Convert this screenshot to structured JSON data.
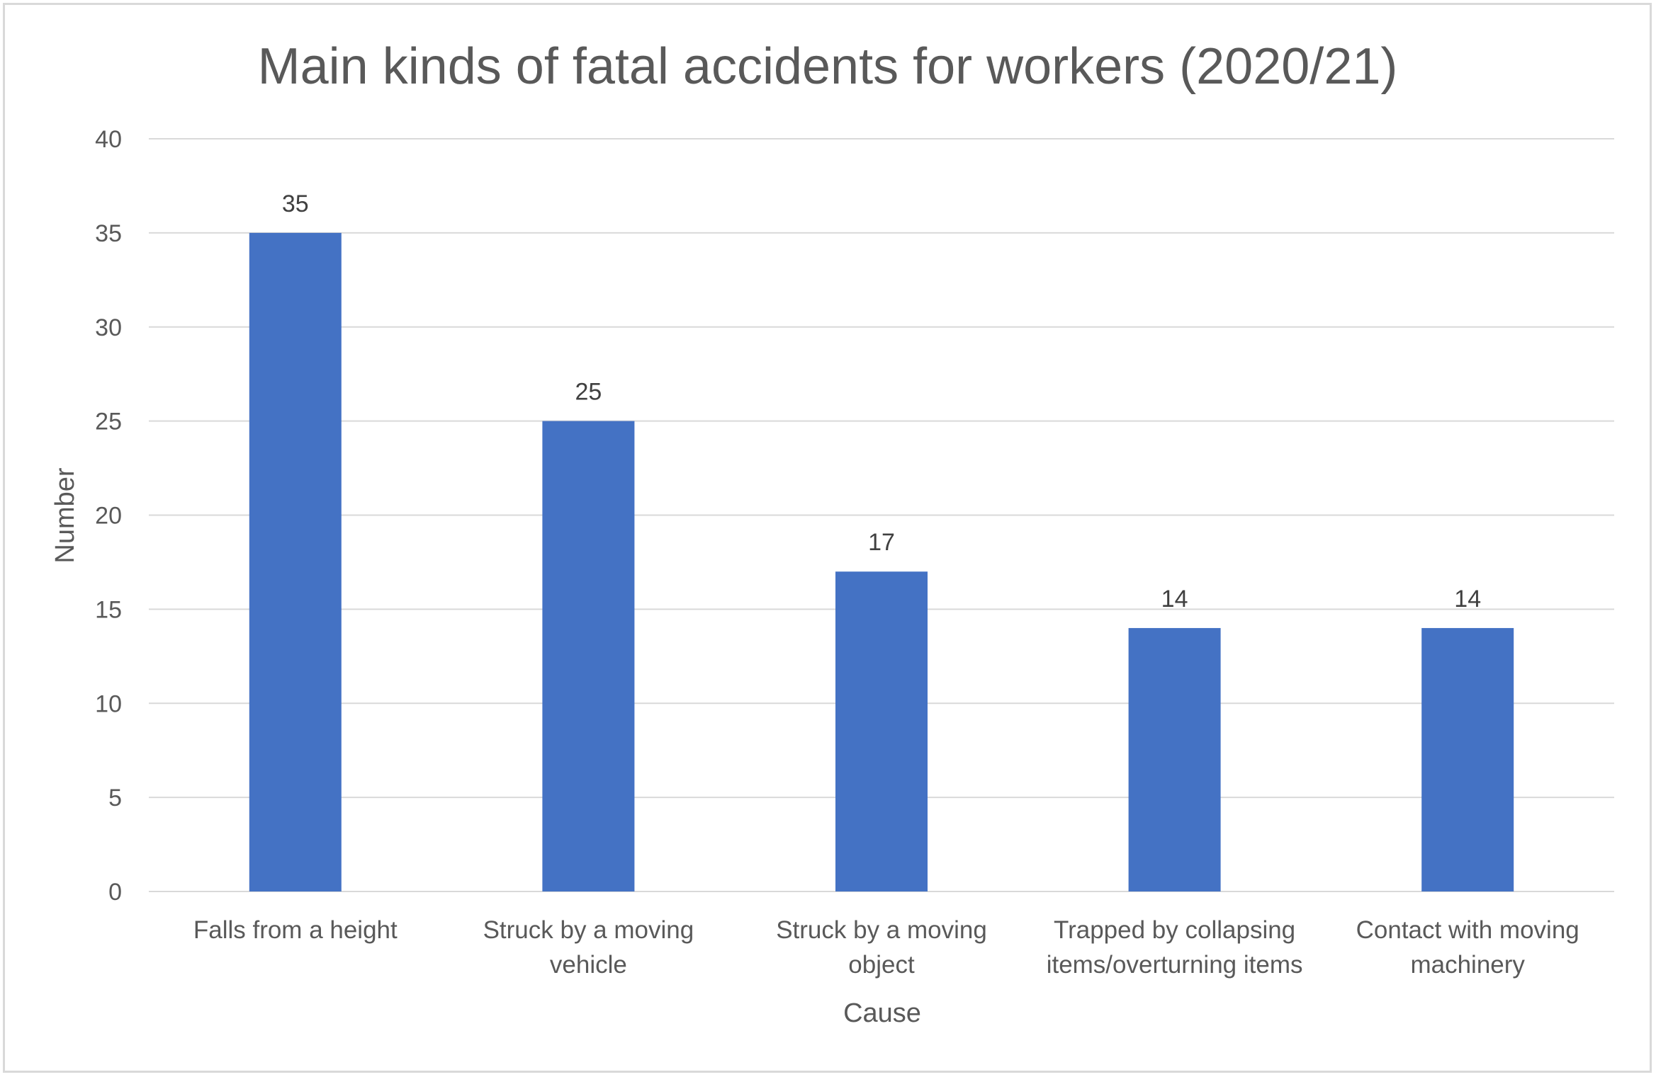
{
  "chart_data": {
    "type": "bar",
    "title": "Main kinds of fatal accidents for workers (2020/21)",
    "xlabel": "Cause",
    "ylabel": "Number",
    "categories": [
      [
        "Falls from a height"
      ],
      [
        "Struck by a moving",
        "vehicle"
      ],
      [
        "Struck by a moving",
        "object"
      ],
      [
        "Trapped by collapsing",
        "items/overturning items"
      ],
      [
        "Contact with moving",
        "machinery"
      ]
    ],
    "values": [
      35,
      25,
      17,
      14,
      14
    ],
    "ylim": [
      0,
      40
    ],
    "yticks": [
      0,
      5,
      10,
      15,
      20,
      25,
      30,
      35,
      40
    ],
    "grid": true,
    "legend": "none",
    "bar_color": "#4472C4"
  }
}
